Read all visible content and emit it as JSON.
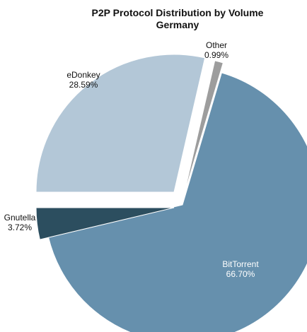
{
  "chart_data": {
    "type": "pie",
    "title": "P2P Protocol Distribution by Volume",
    "subtitle": "Germany",
    "slices": [
      {
        "label": "BitTorrent",
        "value": 66.7,
        "value_label": "66.70%",
        "color": "#6690ad"
      },
      {
        "label": "Gnutella",
        "value": 3.72,
        "value_label": "3.72%",
        "color": "#2c4e5f"
      },
      {
        "label": "eDonkey",
        "value": 28.59,
        "value_label": "28.59%",
        "color": "#b3c7d7"
      },
      {
        "label": "Other",
        "value": 0.99,
        "value_label": "0.99%",
        "color": "#9d9d9d"
      }
    ],
    "exploded": true
  }
}
